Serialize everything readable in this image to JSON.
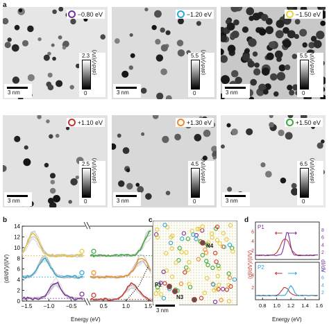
{
  "panel_a": {
    "letter": "a",
    "scale_label": "3 nm",
    "colorbar_label": "(dI/dV)/(I/V)",
    "colorbar_min": "0",
    "tiles": [
      {
        "energy": "−0.80 eV",
        "ring_color": "#7b2d9e",
        "cbar_max": "2.3"
      },
      {
        "energy": "−1.20 eV",
        "ring_color": "#2aa8d8",
        "cbar_max": "5.5"
      },
      {
        "energy": "−1.50 eV",
        "ring_color": "#e8d43a",
        "cbar_max": "5.5"
      },
      {
        "energy": "+1.10 eV",
        "ring_color": "#c8322b",
        "cbar_max": "2.5"
      },
      {
        "energy": "+1.30 eV",
        "ring_color": "#ef8a22",
        "cbar_max": "4.5"
      },
      {
        "energy": "+1.50 eV",
        "ring_color": "#3aa83a",
        "cbar_max": "6.5"
      }
    ]
  },
  "panel_b": {
    "letter": "b",
    "ylabel": "(dI/dV)/(I/V)",
    "xlabel": "Energy (eV)",
    "yticks": [
      "0",
      "2",
      "4",
      "6",
      "8",
      "10",
      "12",
      "14"
    ],
    "xticks_left": [
      "−1.5",
      "−1.0",
      "−0.5"
    ],
    "xticks_right": [
      "0.5",
      "1.0",
      "1.5"
    ],
    "colors": {
      "purple": "#7b2d9e",
      "blue": "#2aa8d8",
      "yellow": "#e8c63a",
      "red": "#c8322b",
      "orange": "#ef8a22",
      "green": "#3aa83a",
      "black": "#111111"
    }
  },
  "panel_c": {
    "letter": "c",
    "scale_label": "3 nm",
    "labels": {
      "n4": "N4",
      "p1": "P1",
      "n3": "N3"
    }
  },
  "panel_d": {
    "letter": "d",
    "ylabel_left": "(dI/dV)/(I/V)",
    "ylabel_right": "dI/dV",
    "xlabel": "Energy (eV)",
    "xticks": [
      "0.8",
      "1.0",
      "1.2",
      "1.4",
      "1.6"
    ],
    "top": {
      "label": "P1",
      "ticks_left": [
        "2",
        "4",
        "6"
      ],
      "ticks_right": [
        "2",
        "4",
        "6",
        "8"
      ]
    },
    "bottom": {
      "label": "P2",
      "ticks_left": [
        "2",
        "4"
      ],
      "ticks_right": [
        "2",
        "4",
        "6",
        "8"
      ]
    }
  }
}
